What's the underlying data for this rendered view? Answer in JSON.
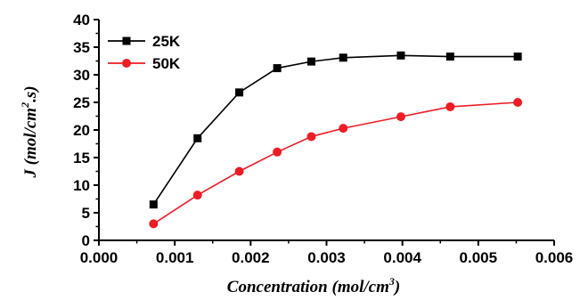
{
  "chart_data": {
    "type": "line",
    "xlabel_main": "Concentration (mol/cm",
    "xlabel_sup": "3",
    "xlabel_end": ")",
    "ylabel_main": "J (mol/cm",
    "ylabel_sup": "2",
    "ylabel_end": ".s)",
    "xlim": [
      0.0,
      0.006
    ],
    "ylim": [
      0,
      40
    ],
    "x_ticks": [
      "0.000",
      "0.001",
      "0.002",
      "0.003",
      "0.004",
      "0.005",
      "0.006"
    ],
    "y_ticks": [
      "0",
      "5",
      "10",
      "15",
      "20",
      "25",
      "30",
      "35",
      "40"
    ],
    "grid": false,
    "legend_position": "top-left",
    "series": [
      {
        "name": "25K",
        "color": "#000000",
        "marker": "square",
        "x": [
          0.00072,
          0.0013,
          0.00185,
          0.00235,
          0.0028,
          0.00322,
          0.00398,
          0.00463,
          0.00552
        ],
        "y": [
          6.5,
          18.5,
          26.8,
          31.2,
          32.4,
          33.1,
          33.5,
          33.3,
          33.3
        ]
      },
      {
        "name": "50K",
        "color": "#ee1c25",
        "marker": "circle",
        "x": [
          0.00072,
          0.0013,
          0.00185,
          0.00235,
          0.0028,
          0.00322,
          0.00398,
          0.00463,
          0.00552
        ],
        "y": [
          3.0,
          8.2,
          12.5,
          16.0,
          18.8,
          20.3,
          22.4,
          24.2,
          25.0
        ]
      }
    ]
  }
}
